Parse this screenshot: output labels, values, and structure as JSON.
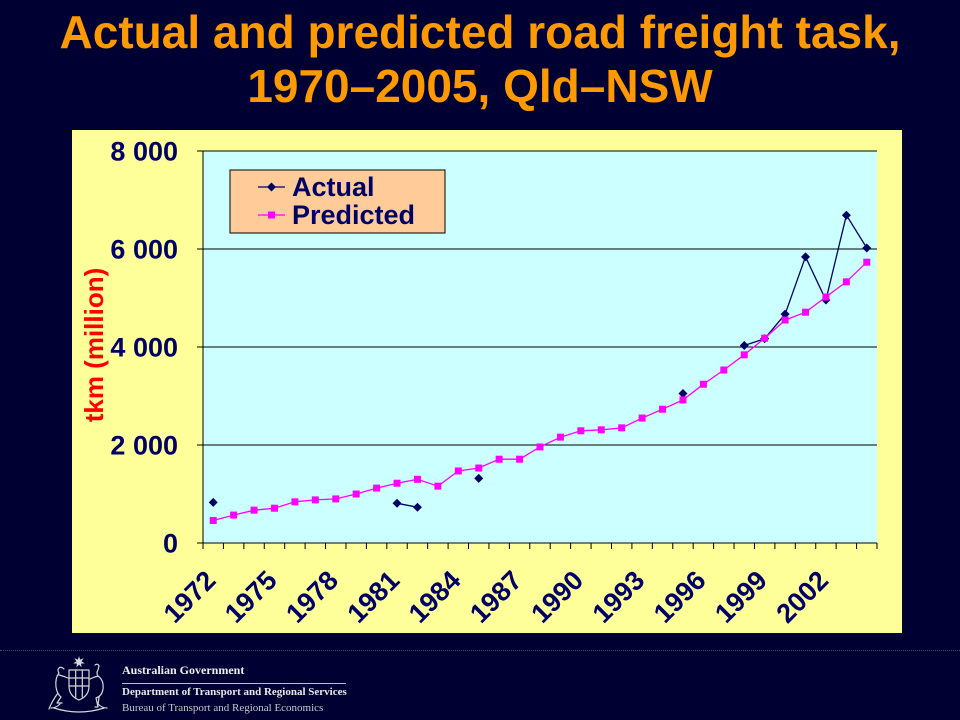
{
  "colors": {
    "page_background": "#000033",
    "title": "#FF9900",
    "chart_panel": "#FFFF99",
    "plot_area": "#CCFFFF",
    "legend_background": "#FFCC99",
    "axis_text": "#000066",
    "axis_title": "#FF0000"
  },
  "chart_data": {
    "type": "line",
    "title": [
      "Actual and predicted road freight task,",
      "1970–2005, Qld–NSW"
    ],
    "xlabel": "",
    "ylabel": "tkm (million)",
    "x": [
      1972,
      1973,
      1974,
      1975,
      1976,
      1977,
      1978,
      1979,
      1980,
      1981,
      1982,
      1983,
      1984,
      1985,
      1986,
      1987,
      1988,
      1989,
      1990,
      1991,
      1992,
      1993,
      1994,
      1995,
      1996,
      1997,
      1998,
      1999,
      2000,
      2001,
      2002,
      2003,
      2004
    ],
    "xtick_labels": [
      "1972",
      "1975",
      "1978",
      "1981",
      "1984",
      "1987",
      "1990",
      "1993",
      "1996",
      "1999",
      "2002"
    ],
    "ytick_labels": [
      "0",
      "2 000",
      "4 000",
      "6 000",
      "8 000"
    ],
    "ylim": [
      0,
      8000
    ],
    "grid": "horizontal",
    "legend_position": "top-left",
    "series": [
      {
        "name": "Actual",
        "color": "#000066",
        "marker": "diamond",
        "values": [
          830,
          null,
          null,
          null,
          null,
          null,
          null,
          null,
          null,
          810,
          730,
          null,
          null,
          1320,
          null,
          null,
          null,
          null,
          null,
          null,
          null,
          null,
          null,
          3050,
          null,
          null,
          4030,
          4170,
          4670,
          5840,
          4960,
          6690,
          6020
        ]
      },
      {
        "name": "Predicted",
        "color": "#FF00FF",
        "marker": "square",
        "values": [
          460,
          570,
          670,
          710,
          840,
          880,
          900,
          1000,
          1120,
          1220,
          1300,
          1160,
          1470,
          1530,
          1710,
          1710,
          1960,
          2160,
          2290,
          2310,
          2350,
          2550,
          2730,
          2920,
          3240,
          3530,
          3840,
          4180,
          4550,
          4710,
          5020,
          5330,
          5730
        ]
      }
    ]
  },
  "footer": {
    "emblem_icon": "coat-of-arms-icon",
    "organisation": "Australian Government",
    "department": "Department of Transport and Regional Services",
    "bureau": "Bureau of Transport and Regional Economics"
  }
}
